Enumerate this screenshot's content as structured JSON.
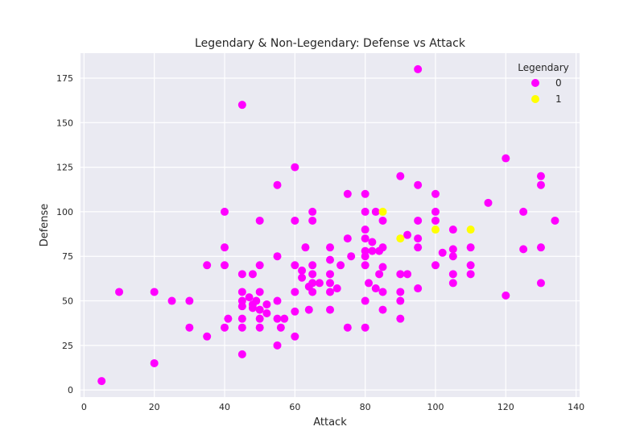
{
  "chart_data": {
    "type": "scatter",
    "title": "Legendary & Non-Legendary: Defense vs Attack",
    "xlabel": "Attack",
    "ylabel": "Defense",
    "xlim": [
      -1,
      141
    ],
    "ylim": [
      -4,
      189
    ],
    "xticks": [
      0,
      20,
      40,
      60,
      80,
      100,
      120,
      140
    ],
    "yticks": [
      0,
      25,
      50,
      75,
      100,
      125,
      150,
      175
    ],
    "grid": true,
    "background": "#eaeaf2",
    "legend": {
      "title": "Legendary",
      "placement": "top-right"
    },
    "series": [
      {
        "name": "0",
        "color": "#ff00ff",
        "points": [
          [
            5,
            5
          ],
          [
            10,
            55
          ],
          [
            20,
            55
          ],
          [
            20,
            15
          ],
          [
            25,
            50
          ],
          [
            30,
            50
          ],
          [
            30,
            35
          ],
          [
            35,
            70
          ],
          [
            35,
            30
          ],
          [
            40,
            100
          ],
          [
            40,
            80
          ],
          [
            40,
            70
          ],
          [
            40,
            35
          ],
          [
            41,
            40
          ],
          [
            45,
            160
          ],
          [
            45,
            65
          ],
          [
            45,
            55
          ],
          [
            45,
            50
          ],
          [
            45,
            47
          ],
          [
            45,
            40
          ],
          [
            45,
            35
          ],
          [
            45,
            20
          ],
          [
            47,
            52
          ],
          [
            48,
            65
          ],
          [
            48,
            48
          ],
          [
            48,
            46
          ],
          [
            49,
            50
          ],
          [
            50,
            95
          ],
          [
            50,
            70
          ],
          [
            50,
            55
          ],
          [
            50,
            45
          ],
          [
            50,
            40
          ],
          [
            50,
            35
          ],
          [
            52,
            48
          ],
          [
            52,
            43
          ],
          [
            55,
            115
          ],
          [
            55,
            75
          ],
          [
            55,
            50
          ],
          [
            55,
            40
          ],
          [
            55,
            25
          ],
          [
            56,
            35
          ],
          [
            57,
            40
          ],
          [
            60,
            125
          ],
          [
            60,
            95
          ],
          [
            60,
            70
          ],
          [
            60,
            55
          ],
          [
            60,
            44
          ],
          [
            60,
            30
          ],
          [
            62,
            67
          ],
          [
            62,
            63
          ],
          [
            63,
            80
          ],
          [
            64,
            58
          ],
          [
            64,
            45
          ],
          [
            65,
            100
          ],
          [
            65,
            95
          ],
          [
            65,
            70
          ],
          [
            65,
            65
          ],
          [
            65,
            60
          ],
          [
            65,
            55
          ],
          [
            67,
            60
          ],
          [
            70,
            80
          ],
          [
            70,
            73
          ],
          [
            70,
            65
          ],
          [
            70,
            60
          ],
          [
            70,
            55
          ],
          [
            70,
            45
          ],
          [
            72,
            57
          ],
          [
            73,
            70
          ],
          [
            75,
            110
          ],
          [
            75,
            85
          ],
          [
            75,
            35
          ],
          [
            76,
            75
          ],
          [
            80,
            110
          ],
          [
            80,
            100
          ],
          [
            80,
            90
          ],
          [
            80,
            85
          ],
          [
            80,
            78
          ],
          [
            80,
            75
          ],
          [
            80,
            70
          ],
          [
            80,
            50
          ],
          [
            80,
            35
          ],
          [
            81,
            60
          ],
          [
            82,
            83
          ],
          [
            82,
            78
          ],
          [
            83,
            100
          ],
          [
            83,
            57
          ],
          [
            84,
            78
          ],
          [
            84,
            65
          ],
          [
            85,
            95
          ],
          [
            85,
            80
          ],
          [
            85,
            69
          ],
          [
            85,
            55
          ],
          [
            85,
            45
          ],
          [
            90,
            120
          ],
          [
            90,
            65
          ],
          [
            90,
            55
          ],
          [
            90,
            50
          ],
          [
            90,
            40
          ],
          [
            92,
            87
          ],
          [
            92,
            65
          ],
          [
            95,
            180
          ],
          [
            95,
            115
          ],
          [
            95,
            95
          ],
          [
            95,
            85
          ],
          [
            95,
            80
          ],
          [
            95,
            57
          ],
          [
            100,
            110
          ],
          [
            100,
            100
          ],
          [
            100,
            95
          ],
          [
            100,
            70
          ],
          [
            102,
            77
          ],
          [
            105,
            90
          ],
          [
            105,
            79
          ],
          [
            105,
            75
          ],
          [
            105,
            65
          ],
          [
            105,
            60
          ],
          [
            110,
            80
          ],
          [
            110,
            70
          ],
          [
            110,
            65
          ],
          [
            115,
            105
          ],
          [
            120,
            130
          ],
          [
            120,
            53
          ],
          [
            125,
            100
          ],
          [
            125,
            79
          ],
          [
            130,
            120
          ],
          [
            130,
            115
          ],
          [
            130,
            80
          ],
          [
            130,
            60
          ],
          [
            134,
            95
          ]
        ]
      },
      {
        "name": "1",
        "color": "#ffff00",
        "points": [
          [
            85,
            100
          ],
          [
            90,
            85
          ],
          [
            100,
            90
          ],
          [
            110,
            90
          ]
        ]
      }
    ]
  }
}
